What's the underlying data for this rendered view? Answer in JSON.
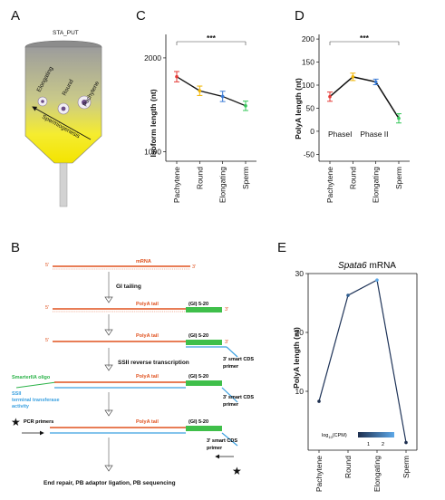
{
  "panels": {
    "A": {
      "letter": "A",
      "tube_label": "STA_PUT",
      "cells": [
        "Elongating",
        "Round",
        "Pachytene"
      ],
      "arrow_label": "Spermiogenesis"
    },
    "B": {
      "letter": "B",
      "mrna": "mRNA",
      "five_prime": "5'",
      "three_prime": "3'",
      "step1": "GI tailing",
      "polya_tail": "PolyA tail",
      "gi_repeat": "(GI) 5-20",
      "step2": "SSII reverse transcription",
      "primer_label": "3' smart CDS primer",
      "primer_line1": "3' smart CDS",
      "primer_line2": "primer",
      "smarter_oligo": "SmarterIIA oligo",
      "ssii_line1": "SSII",
      "ssii_line2": "terminal transferase",
      "ssii_line3": "activity",
      "pcr_primers": "PCR primers",
      "final_step": "End repair, PB adaptor ligation, PB sequencing"
    }
  },
  "chart_data": [
    {
      "panel": "C",
      "type": "line",
      "categories": [
        "Pachytene",
        "Round",
        "Elongating",
        "Sperm"
      ],
      "values": [
        1800,
        1650,
        1590,
        1490
      ],
      "errors": [
        55,
        50,
        55,
        50
      ],
      "point_colors": [
        "#e53935",
        "#f0b400",
        "#3a7bd5",
        "#34c759"
      ],
      "ylabel": "Isoform length (nt)",
      "yticks": [
        1000,
        2000
      ],
      "ylim": [
        900,
        2250
      ],
      "significance": "***"
    },
    {
      "panel": "D",
      "type": "line",
      "categories": [
        "Pachytene",
        "Round",
        "Elongating",
        "Sperm"
      ],
      "values": [
        75,
        118,
        107,
        28
      ],
      "errors": [
        10,
        8,
        6,
        10
      ],
      "point_colors": [
        "#e53935",
        "#f0b400",
        "#3a7bd5",
        "#34c759"
      ],
      "ylabel": "PolyA length (nt)",
      "yticks": [
        -50,
        0,
        50,
        100,
        150,
        200
      ],
      "ylim": [
        -65,
        210
      ],
      "significance": "***",
      "phase_labels": [
        "PhaseI",
        "Phase II"
      ]
    },
    {
      "panel": "E",
      "type": "line",
      "title": "Spata6 mRNA",
      "title_italic": "Spata6",
      "title_rest": " mRNA",
      "categories": [
        "Pachytene",
        "Round",
        "Elongating",
        "Sperm"
      ],
      "values": [
        8.3,
        26.3,
        28.9,
        1.3
      ],
      "ylabel": "PolyA length (nt)",
      "yticks": [
        10,
        20,
        30
      ],
      "ylim": [
        0,
        30
      ],
      "legend": {
        "label_prefix": "log",
        "label_sub": "10",
        "label_suffix": "(CPM)",
        "ticks": [
          "1",
          "2"
        ]
      }
    }
  ]
}
